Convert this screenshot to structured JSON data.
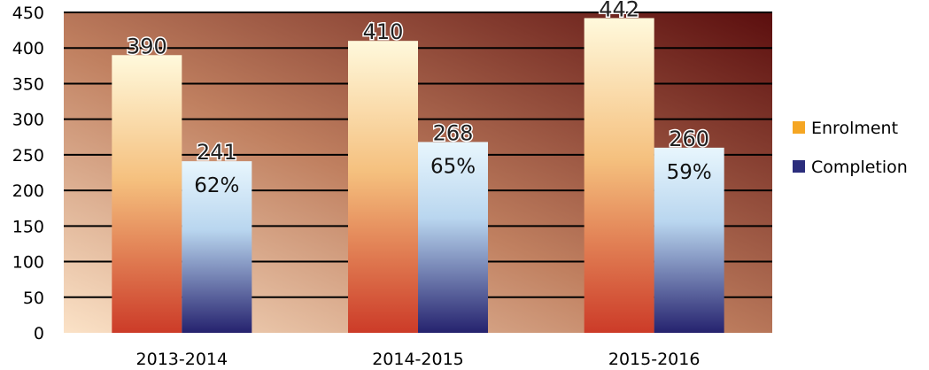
{
  "chart_data": {
    "type": "bar",
    "categories": [
      "2013-2014",
      "2014-2015",
      "2015-2016"
    ],
    "series": [
      {
        "name": "Enrolment",
        "values": [
          390,
          410,
          442
        ],
        "labels": [
          "390",
          "410",
          "442"
        ]
      },
      {
        "name": "Completion",
        "values": [
          241,
          268,
          260
        ],
        "labels": [
          "241",
          "268",
          "260"
        ],
        "rates": [
          "62%",
          "65%",
          "59%"
        ]
      }
    ],
    "ylim": [
      0,
      450
    ],
    "yticks": [
      "0",
      "50",
      "100",
      "150",
      "200",
      "250",
      "300",
      "350",
      "400",
      "450"
    ],
    "grid": true,
    "legend": "right",
    "title": "",
    "xlabel": "",
    "ylabel": "",
    "colors": {
      "enrolment_legend": "#f5a623",
      "completion_legend": "#2b2d7c",
      "enrolment_bar_top": "#fff9dc",
      "enrolment_bar_mid": "#f5c07e",
      "enrolment_bar_bottom": "#cc3b28",
      "completion_bar_top": "#e8f6fd",
      "completion_bar_mid": "#b9d6ef",
      "completion_bar_bottom": "#25226e",
      "plot_bg_top_right": "#5b0e0e",
      "plot_bg_bottom_left": "#fbe2c7",
      "grid": "#000000"
    }
  }
}
